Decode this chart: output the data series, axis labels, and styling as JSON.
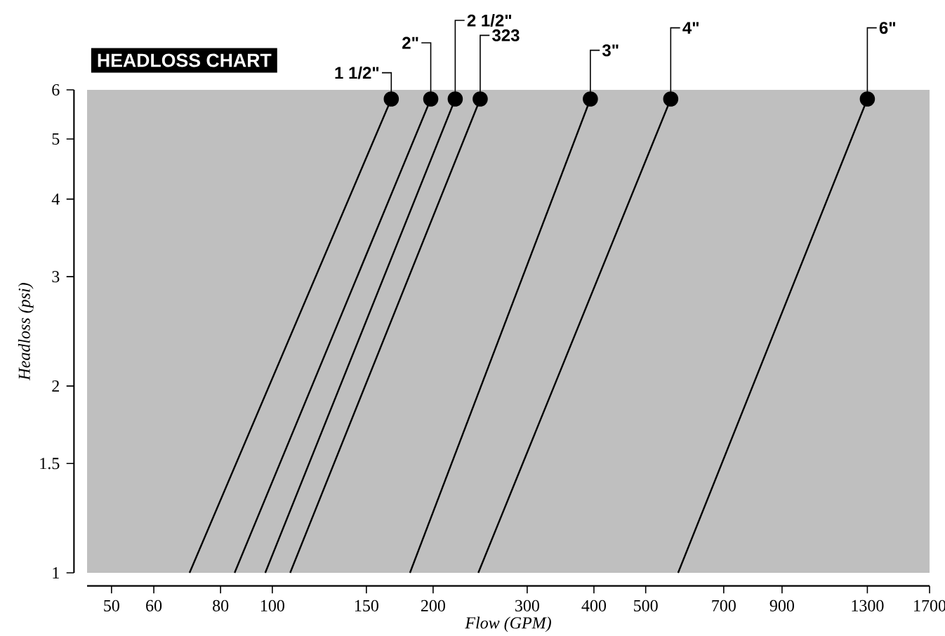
{
  "chart_data": {
    "type": "line",
    "title": "HEADLOSS CHART",
    "xlabel": "Flow (GPM)",
    "ylabel": "Headloss (psi)",
    "log": "xy",
    "xlim": [
      45,
      1700
    ],
    "ylim": [
      1,
      6
    ],
    "xticks": [
      50,
      60,
      80,
      100,
      150,
      200,
      300,
      400,
      500,
      700,
      900,
      1300,
      1700
    ],
    "yticks": [
      1,
      1.5,
      2,
      3,
      4,
      5,
      6
    ],
    "marker": "circle",
    "line_style": "solid",
    "legend": false,
    "grid": false,
    "series": [
      {
        "name": "1 1/2\"",
        "color": "#000000",
        "x": [
          70,
          167
        ],
        "values": [
          1,
          5.8
        ]
      },
      {
        "name": "2\"",
        "color": "#000000",
        "x": [
          85,
          198
        ],
        "values": [
          1,
          5.8
        ]
      },
      {
        "name": "2 1/2\"",
        "color": "#000000",
        "x": [
          97,
          220
        ],
        "values": [
          1,
          5.8
        ]
      },
      {
        "name": "323",
        "color": "#000000",
        "x": [
          108,
          245
        ],
        "values": [
          1,
          5.8
        ]
      },
      {
        "name": "3\"",
        "color": "#000000",
        "x": [
          181,
          394
        ],
        "values": [
          1,
          5.8
        ]
      },
      {
        "name": "4\"",
        "color": "#000000",
        "x": [
          243,
          557
        ],
        "values": [
          1,
          5.8
        ]
      },
      {
        "name": "6\"",
        "color": "#000000",
        "x": [
          575,
          1300
        ],
        "values": [
          1,
          5.8
        ]
      }
    ]
  }
}
